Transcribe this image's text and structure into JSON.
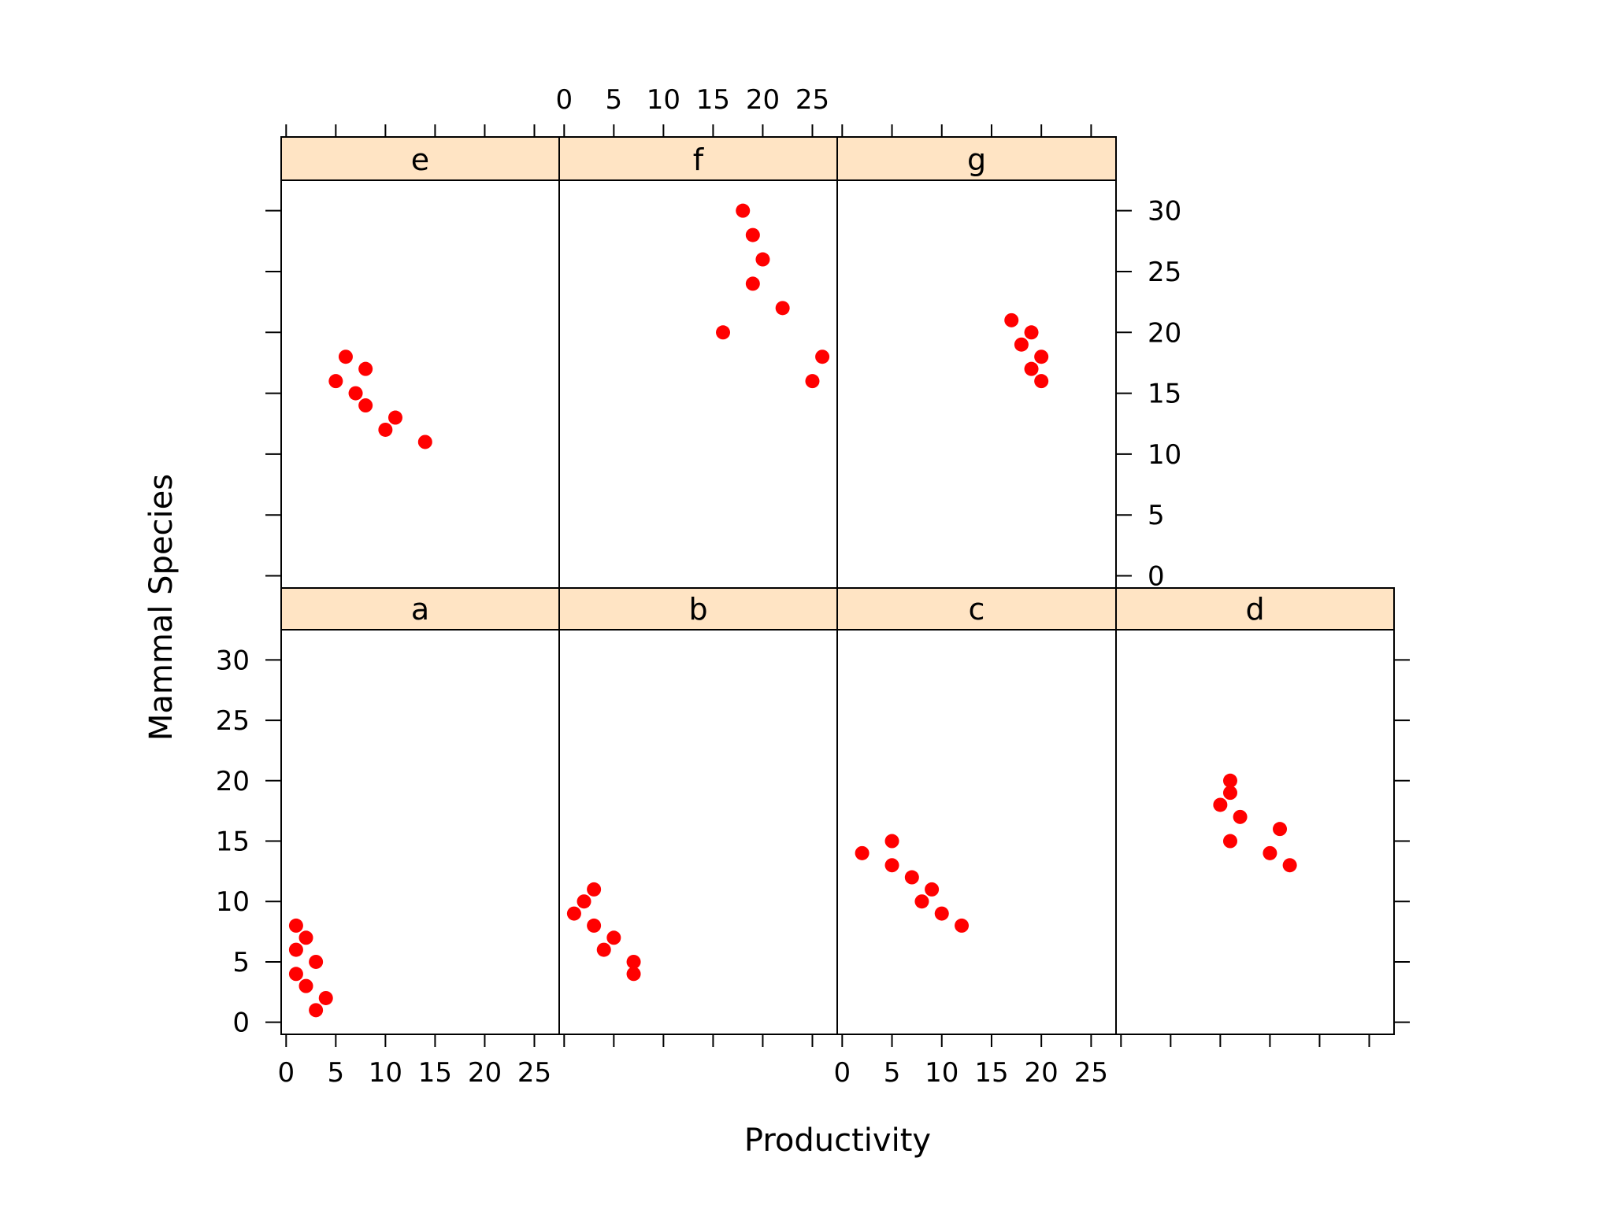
{
  "chart_data": {
    "type": "scatter",
    "layout": "trellis",
    "xlabel": "Productivity",
    "ylabel": "Mammal Species",
    "xlim": [
      -0.5,
      27.5
    ],
    "ylim": [
      -1,
      32.5
    ],
    "x_ticks": [
      0,
      5,
      10,
      15,
      20,
      25
    ],
    "y_ticks": [
      0,
      5,
      10,
      15,
      20,
      25,
      30
    ],
    "grid": false,
    "marker_color": "#ff0000",
    "strip_color": "#ffe4c4",
    "panels": [
      {
        "label": "a",
        "points": [
          [
            1,
            8
          ],
          [
            1,
            6
          ],
          [
            2,
            7
          ],
          [
            1,
            4
          ],
          [
            3,
            5
          ],
          [
            2,
            3
          ],
          [
            4,
            2
          ],
          [
            3,
            1
          ]
        ]
      },
      {
        "label": "b",
        "points": [
          [
            1,
            9
          ],
          [
            2,
            10
          ],
          [
            3,
            11
          ],
          [
            3,
            8
          ],
          [
            4,
            6
          ],
          [
            5,
            7
          ],
          [
            7,
            5
          ],
          [
            7,
            4
          ]
        ]
      },
      {
        "label": "c",
        "points": [
          [
            2,
            14
          ],
          [
            5,
            15
          ],
          [
            5,
            13
          ],
          [
            7,
            12
          ],
          [
            9,
            11
          ],
          [
            8,
            10
          ],
          [
            10,
            9
          ],
          [
            12,
            8
          ]
        ]
      },
      {
        "label": "d",
        "points": [
          [
            10,
            18
          ],
          [
            11,
            20
          ],
          [
            11,
            19
          ],
          [
            12,
            17
          ],
          [
            11,
            15
          ],
          [
            16,
            16
          ],
          [
            15,
            14
          ],
          [
            17,
            13
          ]
        ]
      },
      {
        "label": "e",
        "points": [
          [
            5,
            16
          ],
          [
            6,
            18
          ],
          [
            8,
            17
          ],
          [
            7,
            15
          ],
          [
            8,
            14
          ],
          [
            11,
            13
          ],
          [
            10,
            12
          ],
          [
            14,
            11
          ]
        ]
      },
      {
        "label": "f",
        "points": [
          [
            16,
            20
          ],
          [
            18,
            30
          ],
          [
            19,
            28
          ],
          [
            20,
            26
          ],
          [
            19,
            24
          ],
          [
            22,
            22
          ],
          [
            26,
            18
          ],
          [
            25,
            16
          ]
        ]
      },
      {
        "label": "g",
        "points": [
          [
            17,
            21
          ],
          [
            19,
            20
          ],
          [
            18,
            19
          ],
          [
            20,
            18
          ],
          [
            19,
            17
          ],
          [
            20,
            16
          ]
        ]
      }
    ]
  }
}
